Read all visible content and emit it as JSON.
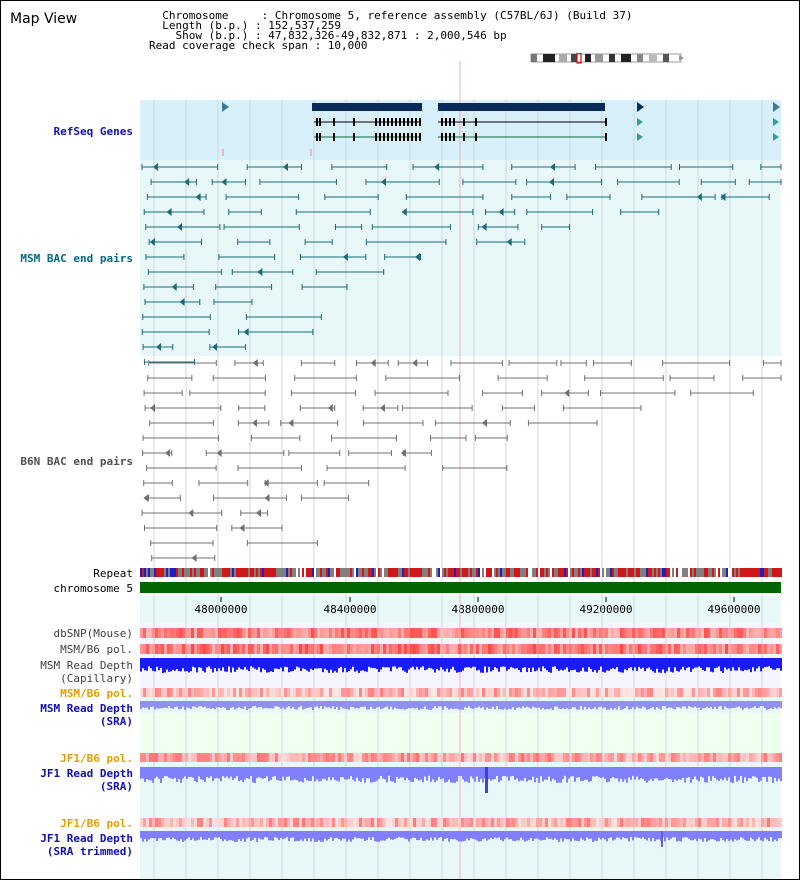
{
  "title": "Map View",
  "info": {
    "line1": "  Chromosome     : Chromosome 5, reference assembly (C57BL/6J) (Build 37)",
    "line2": "  Length (b.p.) : 152,537,259",
    "line3": "    Show (b.p.) : 47,832,326-49,832,871 : 2,000,546 bp",
    "line4": "Read coverage check span : 10,000"
  },
  "tracks": {
    "refseq": "RefSeq Genes",
    "msm_bac": "MSM BAC end pairs",
    "b6n_bac": "B6N BAC end pairs",
    "repeat": "Repeat",
    "chromosome": "chromosome 5",
    "dbsnp": "dbSNP(Mouse)",
    "msm_b6_pol_1": "MSM/B6 pol.",
    "msm_depth_cap_1": "MSM Read Depth",
    "msm_depth_cap_2": "(Capillary)",
    "msm_b6_pol_2": "MSM/B6 pol.",
    "msm_depth_sra_1": "MSM Read Depth",
    "msm_depth_sra_2": "(SRA)",
    "jf1_b6_pol_1": "JF1/B6 pol.",
    "jf1_depth_sra_1": "JF1 Read Depth",
    "jf1_depth_sra_2": "(SRA)",
    "jf1_b6_pol_2": "JF1/B6 pol.",
    "jf1_depth_trim_1": "JF1 Read Depth",
    "jf1_depth_trim_2": "(SRA trimmed)"
  },
  "axis": {
    "ticks": [
      "48000000",
      "48400000",
      "48800000",
      "49200000",
      "49600000"
    ]
  },
  "colors": {
    "refseq_bg": "#d8f0fa",
    "msm_bg": "#e8f8f8",
    "b6n_bg": "#ffffff",
    "lower_bg": "#e8f8f8",
    "chromosome": "#006400",
    "gene": "#0a2a5a",
    "msm_pair": "#1a6a7a",
    "b6n_pair": "#707070",
    "depth_blue": "#1a1aff",
    "depth_lavender": "#8080ff",
    "pol_red": "#f05050"
  }
}
